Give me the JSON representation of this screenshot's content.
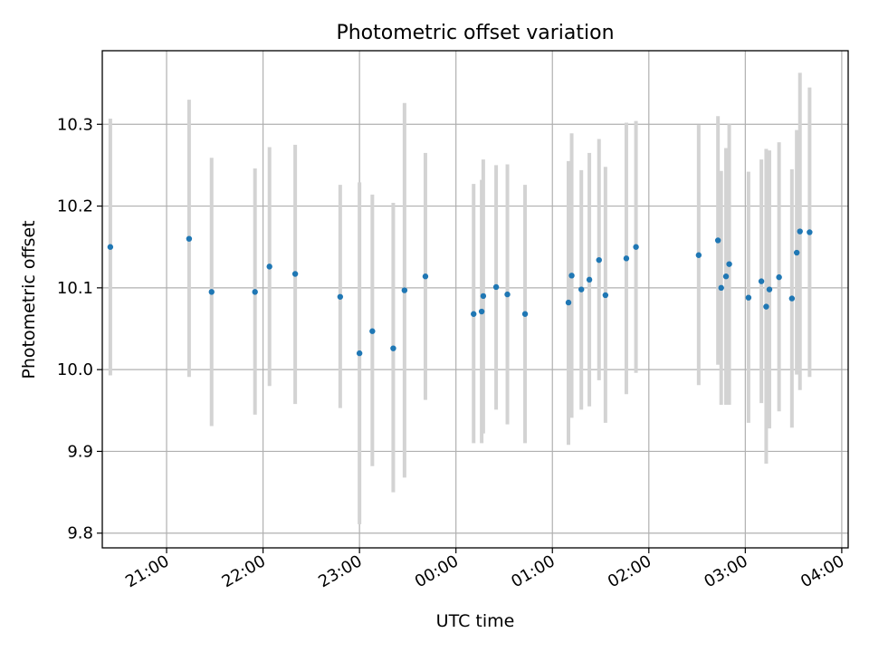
{
  "chart_data": {
    "type": "scatter",
    "title": "Photometric offset variation",
    "xlabel": "UTC time",
    "ylabel": "Photometric offset",
    "x_is_time": true,
    "x_start_date": "2000-01-01",
    "xlim": [
      "20:20",
      "04:04"
    ],
    "ylim": [
      9.782,
      10.39
    ],
    "yticks": [
      9.8,
      9.9,
      10.0,
      10.1,
      10.2,
      10.3
    ],
    "ytick_labels": [
      "9.8",
      "9.9",
      "10.0",
      "10.1",
      "10.2",
      "10.3"
    ],
    "xticks": [
      "21:00",
      "22:00",
      "23:00",
      "00:00",
      "01:00",
      "02:00",
      "03:00",
      "04:00"
    ],
    "xtick_labels": [
      "21:00",
      "22:00",
      "23:00",
      "00:00",
      "01:00",
      "02:00",
      "03:00",
      "04:00"
    ],
    "grid": true,
    "marker_color": "#1f77b4",
    "errorbar_color": "#d3d3d3",
    "points": [
      {
        "time": "20:25",
        "value": 10.15,
        "low": 9.993,
        "high": 10.307
      },
      {
        "time": "21:14",
        "value": 10.16,
        "low": 9.991,
        "high": 10.33
      },
      {
        "time": "21:28",
        "value": 10.095,
        "low": 9.931,
        "high": 10.259
      },
      {
        "time": "21:55",
        "value": 10.095,
        "low": 9.945,
        "high": 10.246
      },
      {
        "time": "22:04",
        "value": 10.126,
        "low": 9.98,
        "high": 10.272
      },
      {
        "time": "22:20",
        "value": 10.117,
        "low": 9.958,
        "high": 10.275
      },
      {
        "time": "22:48",
        "value": 10.089,
        "low": 9.953,
        "high": 10.226
      },
      {
        "time": "23:00",
        "value": 10.02,
        "low": 9.811,
        "high": 10.229
      },
      {
        "time": "23:08",
        "value": 10.047,
        "low": 9.882,
        "high": 10.214
      },
      {
        "time": "23:21",
        "value": 10.026,
        "low": 9.85,
        "high": 10.204
      },
      {
        "time": "23:28",
        "value": 10.097,
        "low": 9.868,
        "high": 10.326
      },
      {
        "time": "23:41",
        "value": 10.114,
        "low": 9.963,
        "high": 10.265
      },
      {
        "time": "00:11",
        "value": 10.068,
        "low": 9.91,
        "high": 10.227
      },
      {
        "time": "00:16",
        "value": 10.071,
        "low": 9.91,
        "high": 10.232
      },
      {
        "time": "00:17",
        "value": 10.09,
        "low": 9.922,
        "high": 10.257
      },
      {
        "time": "00:25",
        "value": 10.101,
        "low": 9.951,
        "high": 10.25
      },
      {
        "time": "00:32",
        "value": 10.092,
        "low": 9.933,
        "high": 10.251
      },
      {
        "time": "00:43",
        "value": 10.068,
        "low": 9.91,
        "high": 10.226
      },
      {
        "time": "01:10",
        "value": 10.082,
        "low": 9.908,
        "high": 10.255
      },
      {
        "time": "01:12",
        "value": 10.115,
        "low": 9.941,
        "high": 10.289
      },
      {
        "time": "01:18",
        "value": 10.098,
        "low": 9.951,
        "high": 10.244
      },
      {
        "time": "01:23",
        "value": 10.11,
        "low": 9.955,
        "high": 10.265
      },
      {
        "time": "01:29",
        "value": 10.134,
        "low": 9.987,
        "high": 10.282
      },
      {
        "time": "01:33",
        "value": 10.091,
        "low": 9.935,
        "high": 10.248
      },
      {
        "time": "01:46",
        "value": 10.136,
        "low": 9.97,
        "high": 10.302
      },
      {
        "time": "01:52",
        "value": 10.15,
        "low": 9.996,
        "high": 10.304
      },
      {
        "time": "02:31",
        "value": 10.14,
        "low": 9.981,
        "high": 10.299
      },
      {
        "time": "02:43",
        "value": 10.158,
        "low": 10.006,
        "high": 10.31
      },
      {
        "time": "02:45",
        "value": 10.1,
        "low": 9.957,
        "high": 10.243
      },
      {
        "time": "02:48",
        "value": 10.114,
        "low": 9.957,
        "high": 10.271
      },
      {
        "time": "02:50",
        "value": 10.129,
        "low": 9.957,
        "high": 10.3
      },
      {
        "time": "03:02",
        "value": 10.088,
        "low": 9.935,
        "high": 10.242
      },
      {
        "time": "03:10",
        "value": 10.108,
        "low": 9.959,
        "high": 10.257
      },
      {
        "time": "03:13",
        "value": 10.077,
        "low": 9.885,
        "high": 10.27
      },
      {
        "time": "03:15",
        "value": 10.098,
        "low": 9.928,
        "high": 10.268
      },
      {
        "time": "03:21",
        "value": 10.113,
        "low": 9.949,
        "high": 10.278
      },
      {
        "time": "03:29",
        "value": 10.087,
        "low": 9.929,
        "high": 10.245
      },
      {
        "time": "03:32",
        "value": 10.143,
        "low": 9.994,
        "high": 10.293
      },
      {
        "time": "03:34",
        "value": 10.169,
        "low": 9.975,
        "high": 10.363
      },
      {
        "time": "03:40",
        "value": 10.168,
        "low": 9.991,
        "high": 10.345
      }
    ]
  }
}
